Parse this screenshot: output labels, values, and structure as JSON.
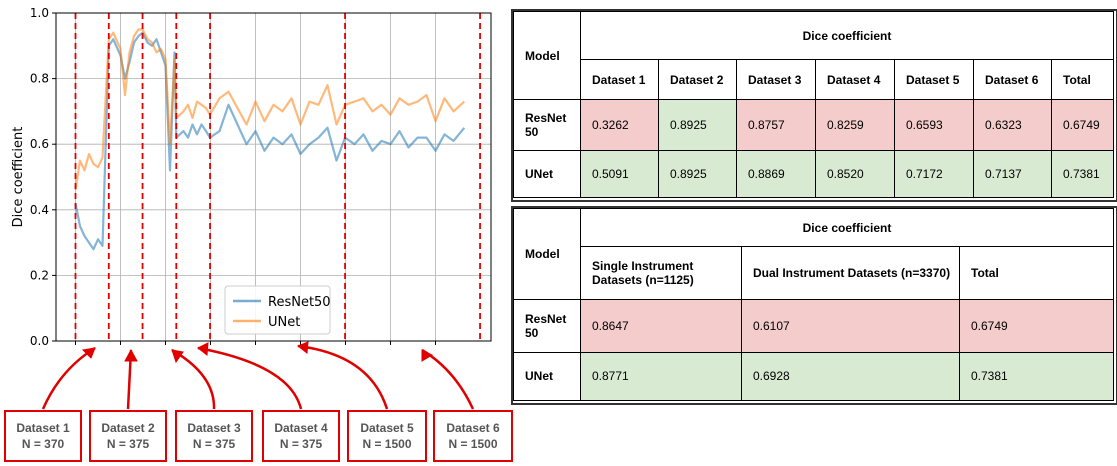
{
  "chart_data": {
    "type": "line",
    "ylabel": "Dice coefficient",
    "ylim": [
      0.0,
      1.0
    ],
    "yticks": [
      "0.0",
      "0.2",
      "0.4",
      "0.6",
      "0.8",
      "1.0"
    ],
    "xlim": [
      0,
      4320
    ],
    "xticks": [
      0,
      500,
      1000,
      1500,
      2000,
      2500,
      3000,
      3500,
      4000
    ],
    "grid": true,
    "legend_position": "lower-center",
    "dataset_boundaries": [
      0,
      370,
      745,
      1120,
      1495,
      2995,
      4495
    ],
    "series": [
      {
        "name": "ResNet50",
        "color": "#1f77b4",
        "x": [
          0,
          50,
          100,
          150,
          200,
          250,
          300,
          370,
          420,
          500,
          550,
          600,
          650,
          700,
          745,
          800,
          850,
          900,
          950,
          1000,
          1050,
          1100,
          1120,
          1200,
          1250,
          1300,
          1350,
          1400,
          1450,
          1495,
          1600,
          1700,
          1800,
          1900,
          2000,
          2100,
          2200,
          2300,
          2400,
          2500,
          2600,
          2700,
          2800,
          2900,
          2995,
          3100,
          3200,
          3300,
          3400,
          3500,
          3600,
          3700,
          3800,
          3900,
          4000,
          4100,
          4200,
          4320
        ],
        "values": [
          0.42,
          0.35,
          0.32,
          0.3,
          0.28,
          0.31,
          0.29,
          0.9,
          0.92,
          0.87,
          0.8,
          0.85,
          0.91,
          0.93,
          0.94,
          0.91,
          0.9,
          0.92,
          0.88,
          0.84,
          0.52,
          0.88,
          0.62,
          0.64,
          0.62,
          0.66,
          0.63,
          0.66,
          0.64,
          0.62,
          0.64,
          0.72,
          0.66,
          0.6,
          0.64,
          0.58,
          0.62,
          0.6,
          0.63,
          0.57,
          0.6,
          0.62,
          0.65,
          0.55,
          0.62,
          0.6,
          0.63,
          0.58,
          0.61,
          0.6,
          0.64,
          0.59,
          0.62,
          0.62,
          0.58,
          0.63,
          0.61,
          0.65
        ]
      },
      {
        "name": "UNet",
        "color": "#ff7f0e",
        "x": [
          0,
          50,
          100,
          150,
          200,
          250,
          300,
          370,
          420,
          500,
          550,
          600,
          650,
          700,
          745,
          800,
          850,
          900,
          950,
          1000,
          1050,
          1100,
          1120,
          1200,
          1250,
          1300,
          1350,
          1400,
          1450,
          1495,
          1600,
          1700,
          1800,
          1900,
          2000,
          2100,
          2200,
          2300,
          2400,
          2500,
          2600,
          2700,
          2800,
          2900,
          2995,
          3100,
          3200,
          3300,
          3400,
          3500,
          3600,
          3700,
          3800,
          3900,
          4000,
          4100,
          4200,
          4320
        ],
        "values": [
          0.46,
          0.55,
          0.52,
          0.57,
          0.54,
          0.53,
          0.56,
          0.92,
          0.94,
          0.89,
          0.75,
          0.88,
          0.93,
          0.95,
          0.95,
          0.92,
          0.91,
          0.88,
          0.89,
          0.86,
          0.6,
          0.86,
          0.68,
          0.7,
          0.72,
          0.68,
          0.73,
          0.72,
          0.71,
          0.69,
          0.74,
          0.76,
          0.71,
          0.66,
          0.73,
          0.67,
          0.72,
          0.7,
          0.74,
          0.66,
          0.73,
          0.72,
          0.78,
          0.66,
          0.72,
          0.73,
          0.74,
          0.7,
          0.72,
          0.69,
          0.74,
          0.72,
          0.73,
          0.75,
          0.67,
          0.74,
          0.7,
          0.73
        ]
      }
    ]
  },
  "dataset_boxes": [
    {
      "name": "Dataset 1",
      "n": "N = 370"
    },
    {
      "name": "Dataset 2",
      "n": "N = 375"
    },
    {
      "name": "Dataset 3",
      "n": "N = 375"
    },
    {
      "name": "Dataset 4",
      "n": "N = 375"
    },
    {
      "name": "Dataset 5",
      "n": "N = 1500"
    },
    {
      "name": "Dataset 6",
      "n": "N = 1500"
    }
  ],
  "table1": {
    "model_header": "Model",
    "group_header": "Dice coefficient",
    "columns": [
      "Dataset 1",
      "Dataset 2",
      "Dataset 3",
      "Dataset 4",
      "Dataset 5",
      "Dataset 6",
      "Total"
    ],
    "rows": [
      {
        "model": "ResNet 50",
        "values": [
          "0.3262",
          "0.8925",
          "0.8757",
          "0.8259",
          "0.6593",
          "0.6323",
          "0.6749"
        ],
        "colors": [
          "red",
          "green",
          "red",
          "red",
          "red",
          "red",
          "red"
        ]
      },
      {
        "model": "UNet",
        "values": [
          "0.5091",
          "0.8925",
          "0.8869",
          "0.8520",
          "0.7172",
          "0.7137",
          "0.7381"
        ],
        "colors": [
          "green",
          "green",
          "green",
          "green",
          "green",
          "green",
          "green"
        ]
      }
    ]
  },
  "table2": {
    "model_header": "Model",
    "group_header": "Dice coefficient",
    "columns": [
      "Single Instrument Datasets (n=1125)",
      "Dual Instrument Datasets (n=3370)",
      "Total"
    ],
    "rows": [
      {
        "model": "ResNet 50",
        "values": [
          "0.8647",
          "0.6107",
          "0.6749"
        ],
        "colors": [
          "red",
          "red",
          "red"
        ]
      },
      {
        "model": "UNet",
        "values": [
          "0.8771",
          "0.6928",
          "0.7381"
        ],
        "colors": [
          "green",
          "green",
          "green"
        ]
      }
    ]
  }
}
